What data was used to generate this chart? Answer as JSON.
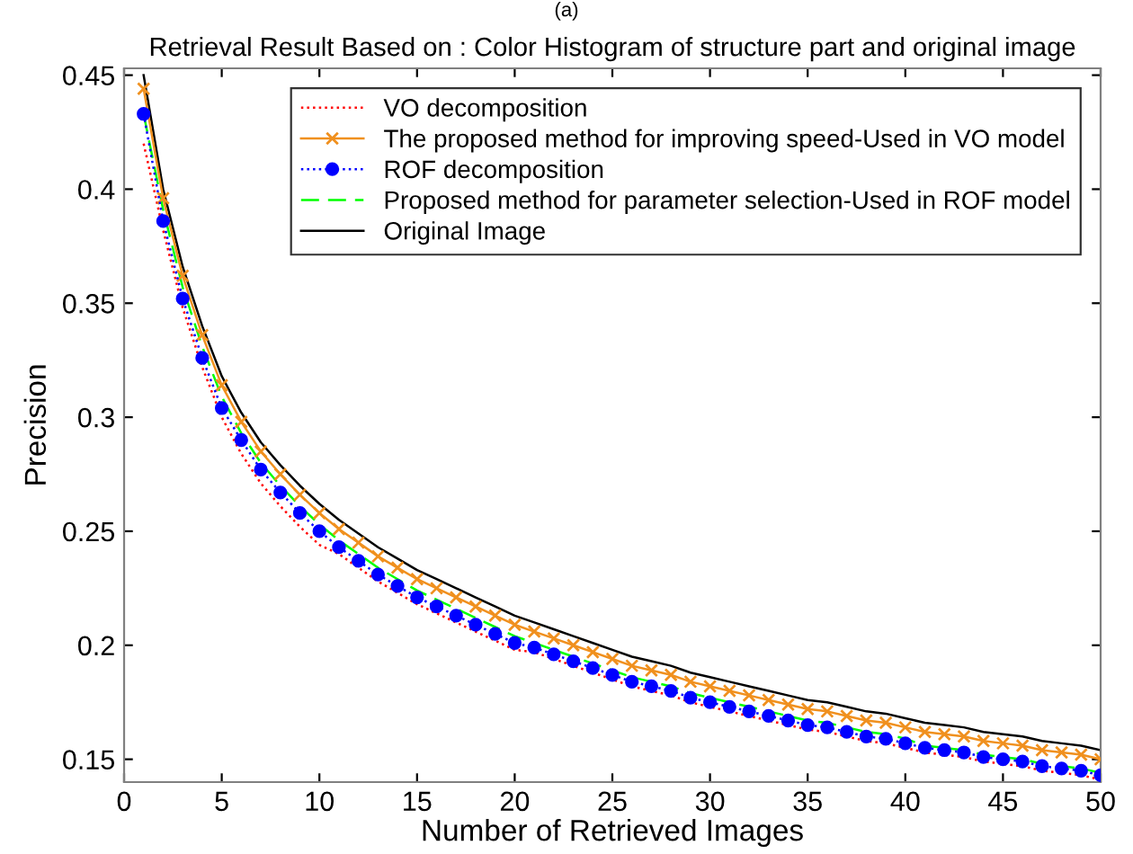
{
  "chart_data": {
    "type": "line",
    "title": "Retrieval Result Based on : Color Histogram of structure part and original image",
    "annotations": [
      "(a)"
    ],
    "xlabel": "Number of Retrieved Images",
    "ylabel": "Precision",
    "x": [
      1,
      2,
      3,
      4,
      5,
      6,
      7,
      8,
      9,
      10,
      11,
      12,
      13,
      14,
      15,
      16,
      17,
      18,
      19,
      20,
      21,
      22,
      23,
      24,
      25,
      26,
      27,
      28,
      29,
      30,
      31,
      32,
      33,
      34,
      35,
      36,
      37,
      38,
      39,
      40,
      41,
      42,
      43,
      44,
      45,
      46,
      47,
      48,
      49,
      50
    ],
    "xlim": [
      0,
      50
    ],
    "xticks": [
      0,
      5,
      10,
      15,
      20,
      25,
      30,
      35,
      40,
      45,
      50
    ],
    "ylim": [
      0.14,
      0.453
    ],
    "yticks": [
      0.15,
      0.2,
      0.25,
      0.3,
      0.35,
      0.4,
      0.45
    ],
    "grid": false,
    "legend": "top right",
    "series": [
      {
        "name": "VO decomposition",
        "color": "#ff0000",
        "line_style": "dotted",
        "marker": "none",
        "values": [
          0.42,
          0.382,
          0.348,
          0.322,
          0.3,
          0.284,
          0.271,
          0.261,
          0.252,
          0.244,
          0.24,
          0.234,
          0.228,
          0.223,
          0.218,
          0.214,
          0.21,
          0.206,
          0.202,
          0.198,
          0.197,
          0.194,
          0.191,
          0.188,
          0.185,
          0.182,
          0.18,
          0.178,
          0.175,
          0.173,
          0.171,
          0.169,
          0.167,
          0.165,
          0.163,
          0.162,
          0.16,
          0.158,
          0.157,
          0.155,
          0.153,
          0.152,
          0.151,
          0.149,
          0.148,
          0.147,
          0.145,
          0.144,
          0.143,
          0.141
        ]
      },
      {
        "name": "The proposed method for improving speed-Used in VO model",
        "color": "#f0901e",
        "line_style": "solid",
        "marker": "cross",
        "values": [
          0.444,
          0.396,
          0.362,
          0.336,
          0.314,
          0.298,
          0.285,
          0.275,
          0.266,
          0.258,
          0.251,
          0.245,
          0.239,
          0.234,
          0.229,
          0.225,
          0.221,
          0.217,
          0.213,
          0.209,
          0.206,
          0.203,
          0.2,
          0.197,
          0.194,
          0.191,
          0.189,
          0.187,
          0.184,
          0.182,
          0.18,
          0.178,
          0.176,
          0.174,
          0.172,
          0.171,
          0.169,
          0.167,
          0.166,
          0.164,
          0.162,
          0.161,
          0.16,
          0.158,
          0.157,
          0.156,
          0.154,
          0.153,
          0.152,
          0.15
        ]
      },
      {
        "name": "ROF decomposition",
        "color": "#0000ff",
        "line_style": "dotted",
        "marker": "circle",
        "values": [
          0.433,
          0.386,
          0.352,
          0.326,
          0.304,
          0.29,
          0.277,
          0.267,
          0.258,
          0.25,
          0.243,
          0.237,
          0.231,
          0.226,
          0.221,
          0.217,
          0.213,
          0.209,
          0.205,
          0.201,
          0.199,
          0.196,
          0.193,
          0.19,
          0.187,
          0.184,
          0.182,
          0.18,
          0.177,
          0.175,
          0.173,
          0.171,
          0.169,
          0.167,
          0.165,
          0.164,
          0.162,
          0.16,
          0.159,
          0.157,
          0.155,
          0.154,
          0.153,
          0.151,
          0.15,
          0.149,
          0.147,
          0.146,
          0.145,
          0.143
        ]
      },
      {
        "name": "Proposed method for parameter selection-Used in ROF model",
        "color": "#00ff00",
        "line_style": "dashed",
        "marker": "none",
        "values": [
          0.433,
          0.391,
          0.357,
          0.331,
          0.309,
          0.293,
          0.28,
          0.27,
          0.261,
          0.253,
          0.246,
          0.24,
          0.234,
          0.229,
          0.224,
          0.22,
          0.216,
          0.212,
          0.208,
          0.204,
          0.201,
          0.198,
          0.195,
          0.192,
          0.189,
          0.186,
          0.184,
          0.182,
          0.179,
          0.177,
          0.175,
          0.173,
          0.171,
          0.169,
          0.167,
          0.166,
          0.164,
          0.162,
          0.161,
          0.159,
          0.156,
          0.155,
          0.154,
          0.152,
          0.151,
          0.15,
          0.148,
          0.147,
          0.146,
          0.144
        ]
      },
      {
        "name": "Original Image",
        "color": "#000000",
        "line_style": "solid",
        "marker": "none",
        "values": [
          0.45,
          0.4,
          0.366,
          0.34,
          0.318,
          0.302,
          0.289,
          0.279,
          0.27,
          0.262,
          0.255,
          0.249,
          0.243,
          0.238,
          0.233,
          0.229,
          0.225,
          0.221,
          0.217,
          0.213,
          0.21,
          0.207,
          0.204,
          0.201,
          0.198,
          0.195,
          0.193,
          0.191,
          0.188,
          0.186,
          0.184,
          0.182,
          0.18,
          0.178,
          0.176,
          0.175,
          0.173,
          0.171,
          0.17,
          0.168,
          0.166,
          0.165,
          0.164,
          0.162,
          0.161,
          0.16,
          0.158,
          0.157,
          0.156,
          0.154
        ]
      }
    ]
  }
}
